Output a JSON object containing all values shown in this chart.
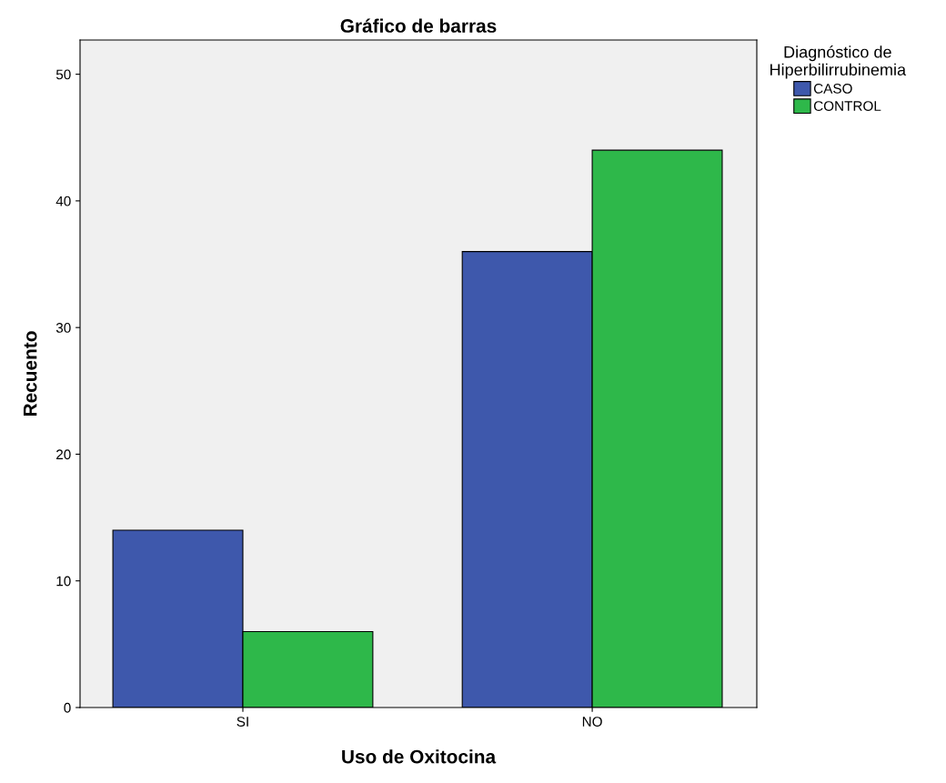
{
  "chart_data": {
    "type": "bar",
    "title": "Gráfico de barras",
    "xlabel": "Uso de Oxitocina",
    "ylabel": "Recuento",
    "legend_title": "Diagnóstico de\nHiperbilirrubinemia",
    "categories": [
      "SI",
      "NO"
    ],
    "series": [
      {
        "name": "CASO",
        "color": "#3e58ac",
        "values": [
          14,
          36
        ]
      },
      {
        "name": "CONTROL",
        "color": "#2eb84a",
        "values": [
          6,
          44
        ]
      }
    ],
    "ylim": [
      0,
      52.7
    ],
    "yticks": [
      0,
      10,
      20,
      30,
      40,
      50
    ],
    "grid": false,
    "legend": "top right"
  }
}
